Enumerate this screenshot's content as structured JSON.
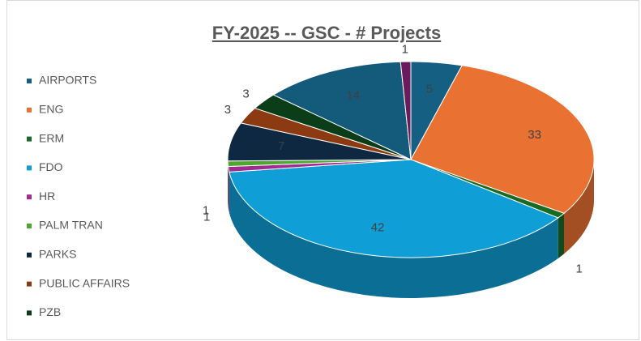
{
  "chart_data": {
    "type": "pie3d",
    "title": "FY-2025 -- GSC - # Projects",
    "categories": [
      "AIRPORTS",
      "ENG",
      "ERM",
      "FDO",
      "HR",
      "PALM TRAN",
      "PARKS",
      "PUBLIC AFFAIRS",
      "PZB",
      null,
      null
    ],
    "values": [
      5,
      33,
      1,
      42,
      1,
      1,
      7,
      3,
      3,
      14,
      1
    ],
    "colors": [
      "#156082",
      "#e97132",
      "#196b24",
      "#0f9ed5",
      "#a02b93",
      "#4ea72e",
      "#0e2841",
      "#8b3a12",
      "#0b3d18",
      "#145a7a",
      "#6a1b5c"
    ],
    "legend": "left"
  }
}
